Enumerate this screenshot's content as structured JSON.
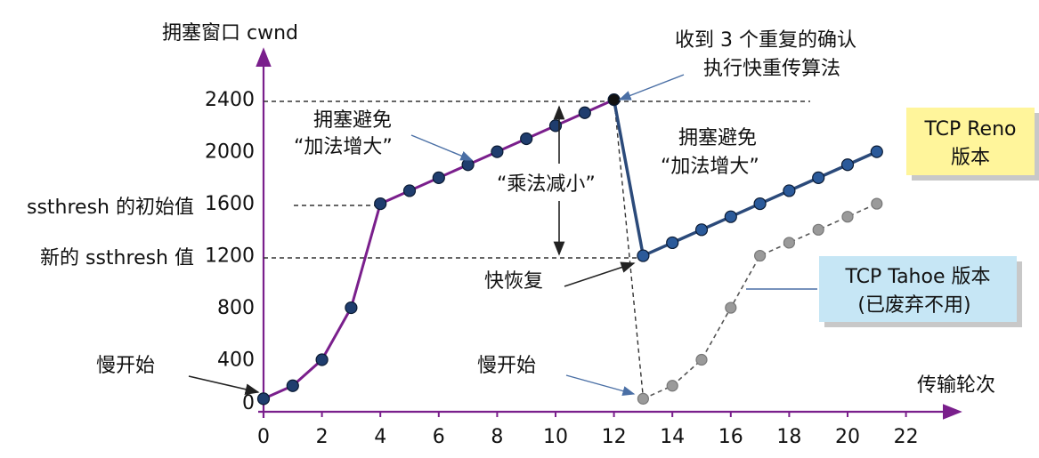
{
  "labels": {
    "y_axis_title": "拥塞窗口 cwnd",
    "x_axis_title": "传输轮次",
    "ssthresh_initial": "ssthresh 的初始值",
    "ssthresh_new": "新的 ssthresh 值",
    "slow_start_1": "慢开始",
    "slow_start_2": "慢开始",
    "congestion_avoid_1_l1": "拥塞避免",
    "congestion_avoid_1_l2": "“加法增大”",
    "congestion_avoid_2_l1": "拥塞避免",
    "congestion_avoid_2_l2": "“加法增大”",
    "mult_decrease": "“乘法减小”",
    "fast_recovery": "快恢复",
    "dup_ack_l1": "收到 3 个重复的确认",
    "dup_ack_l2": "执行快重传算法"
  },
  "boxes": {
    "reno_l1": "TCP Reno",
    "reno_l2": "版本",
    "tahoe_l1": "TCP Tahoe 版本",
    "tahoe_l2": "(已废弃不用)"
  },
  "colors": {
    "purple": "#7a1f8c",
    "blue": "#2b4a7a",
    "gray": "#9a9a9a",
    "reno_box": "#fff59b",
    "tahoe_box": "#c6e6f5"
  },
  "chart_data": {
    "type": "line",
    "x_ticks": [
      0,
      2,
      4,
      6,
      8,
      10,
      12,
      14,
      16,
      18,
      20,
      22
    ],
    "y_ticks": [
      0,
      400,
      800,
      1200,
      1600,
      2000,
      2400
    ],
    "xlabel": "传输轮次",
    "ylabel": "拥塞窗口 cwnd",
    "series": [
      {
        "name": "",
        "points": [
          [
            0,
            100
          ],
          [
            1,
            200
          ],
          [
            2,
            400
          ],
          [
            3,
            800
          ],
          [
            4,
            1600
          ],
          [
            5,
            1700
          ],
          [
            6,
            1800
          ],
          [
            7,
            1900
          ],
          [
            8,
            2000
          ],
          [
            9,
            2100
          ],
          [
            10,
            2200
          ],
          [
            11,
            2300
          ],
          [
            12,
            2400
          ]
        ]
      },
      {
        "name": "TCP Reno",
        "points": [
          [
            13,
            1200
          ],
          [
            14,
            1300
          ],
          [
            15,
            1400
          ],
          [
            16,
            1500
          ],
          [
            17,
            1600
          ],
          [
            18,
            1700
          ],
          [
            19,
            1800
          ],
          [
            20,
            1900
          ],
          [
            21,
            2000
          ]
        ]
      },
      {
        "name": "TCP Tahoe",
        "points": [
          [
            13,
            100
          ],
          [
            14,
            200
          ],
          [
            15,
            400
          ],
          [
            16,
            800
          ],
          [
            17,
            1200
          ],
          [
            18,
            1300
          ],
          [
            19,
            1400
          ],
          [
            20,
            1500
          ],
          [
            21,
            1600
          ]
        ]
      }
    ]
  }
}
